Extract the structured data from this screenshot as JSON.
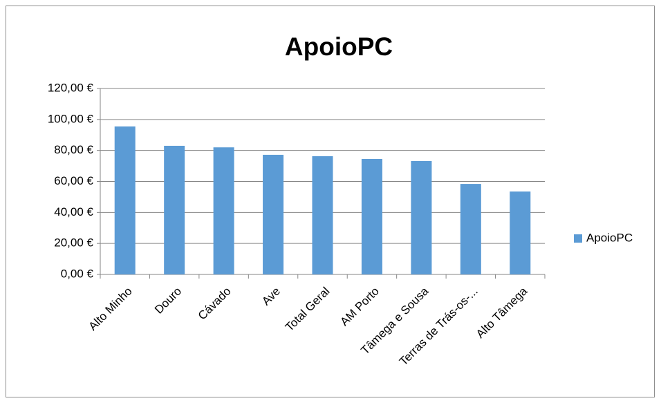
{
  "chart_data": {
    "type": "bar",
    "title": "ApoioPC",
    "categories": [
      "Alto Minho",
      "Douro",
      "Cávado",
      "Ave",
      "Total Geral",
      "AM Porto",
      "Tâmega e Sousa",
      "Terras de Trás-os-...",
      "Alto Tâmega"
    ],
    "series": [
      {
        "name": "ApoioPC",
        "color": "#5b9bd5",
        "values": [
          95.5,
          83,
          82,
          77.2,
          76.3,
          74.5,
          73.2,
          58.4,
          53.5
        ]
      }
    ],
    "ylim": [
      0,
      120
    ],
    "yticks": [
      {
        "value": 0,
        "label": "0,00 €"
      },
      {
        "value": 20,
        "label": "20,00 €"
      },
      {
        "value": 40,
        "label": "40,00 €"
      },
      {
        "value": 60,
        "label": "60,00 €"
      },
      {
        "value": 80,
        "label": "80,00 €"
      },
      {
        "value": 100,
        "label": "100,00 €"
      },
      {
        "value": 120,
        "label": "120,00 €"
      }
    ],
    "grid": true,
    "legend": "right"
  }
}
